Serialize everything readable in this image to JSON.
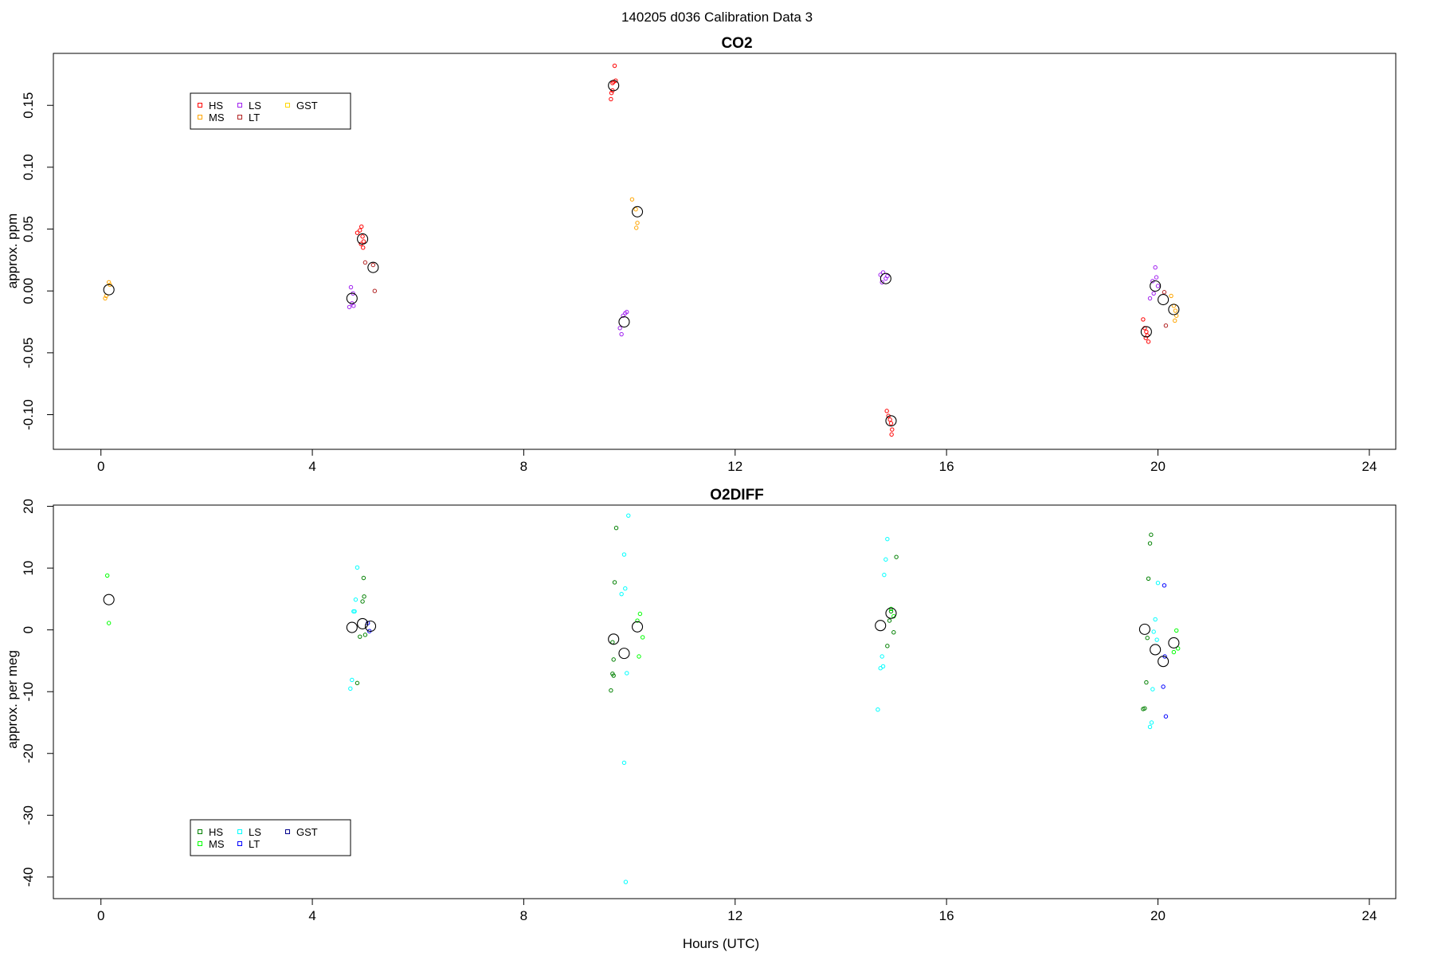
{
  "figure": {
    "title": "140205   d036   Calibration Data 3",
    "xlabel": "Hours (UTC)"
  },
  "chart_data": [
    {
      "type": "scatter",
      "title": "CO2",
      "xlabel": "",
      "ylabel": "approx. ppm",
      "xlim": [
        -0.9,
        24.5
      ],
      "ylim": [
        -0.128,
        0.192
      ],
      "xticks": [
        "0",
        "4",
        "8",
        "12",
        "16",
        "20",
        "24"
      ],
      "yticks": [
        "-0.10",
        "-0.05",
        "0.00",
        "0.05",
        "0.10",
        "0.15"
      ],
      "legend": {
        "position": "top-left",
        "entries": [
          {
            "label": "HS",
            "color": "#ff0000"
          },
          {
            "label": "MS",
            "color": "#ffa500"
          },
          {
            "label": "LS",
            "color": "#a020f0"
          },
          {
            "label": "LT",
            "color": "#b22222"
          },
          {
            "label": "GST",
            "color": "#ffd700"
          }
        ]
      },
      "series": [
        {
          "name": "HS",
          "color": "#ff0000",
          "points": [
            [
              4.85,
              0.047
            ],
            [
              4.9,
              0.049
            ],
            [
              4.93,
              0.052
            ],
            [
              4.95,
              0.044
            ],
            [
              4.92,
              0.038
            ],
            [
              4.96,
              0.035
            ],
            [
              4.97,
              0.04
            ],
            [
              9.72,
              0.182
            ],
            [
              9.68,
              0.168
            ],
            [
              9.7,
              0.169
            ],
            [
              9.66,
              0.16
            ],
            [
              9.65,
              0.155
            ],
            [
              9.68,
              0.162
            ],
            [
              9.74,
              0.17
            ],
            [
              14.87,
              -0.097
            ],
            [
              14.9,
              -0.101
            ],
            [
              14.93,
              -0.104
            ],
            [
              14.95,
              -0.107
            ],
            [
              14.97,
              -0.112
            ],
            [
              14.96,
              -0.116
            ],
            [
              19.72,
              -0.023
            ],
            [
              19.75,
              -0.03
            ],
            [
              19.78,
              -0.033
            ],
            [
              19.8,
              -0.036
            ],
            [
              19.77,
              -0.038
            ],
            [
              19.82,
              -0.041
            ]
          ]
        },
        {
          "name": "MS",
          "color": "#ffa500",
          "points": [
            [
              0.08,
              -0.006
            ],
            [
              0.1,
              -0.004
            ],
            [
              0.15,
              0.007
            ],
            [
              0.17,
              0.005
            ],
            [
              10.05,
              0.074
            ],
            [
              10.12,
              0.066
            ],
            [
              10.15,
              0.055
            ],
            [
              10.13,
              0.051
            ],
            [
              20.25,
              -0.004
            ],
            [
              20.3,
              -0.012
            ],
            [
              20.33,
              -0.016
            ],
            [
              20.35,
              -0.02
            ],
            [
              20.32,
              -0.024
            ]
          ]
        },
        {
          "name": "LS",
          "color": "#a020f0",
          "points": [
            [
              4.7,
              -0.013
            ],
            [
              4.75,
              -0.01
            ],
            [
              4.78,
              -0.012
            ],
            [
              4.73,
              0.003
            ],
            [
              4.77,
              -0.002
            ],
            [
              9.82,
              -0.03
            ],
            [
              9.85,
              -0.035
            ],
            [
              9.88,
              -0.02
            ],
            [
              9.92,
              -0.018
            ],
            [
              9.95,
              -0.017
            ],
            [
              14.75,
              0.013
            ],
            [
              14.8,
              0.015
            ],
            [
              14.85,
              0.01
            ],
            [
              14.78,
              0.007
            ],
            [
              14.88,
              0.012
            ],
            [
              19.85,
              -0.006
            ],
            [
              19.9,
              0.008
            ],
            [
              19.95,
              0.019
            ],
            [
              19.97,
              0.011
            ],
            [
              20.0,
              0.004
            ],
            [
              19.92,
              -0.002
            ]
          ]
        },
        {
          "name": "LT",
          "color": "#b22222",
          "points": [
            [
              5.0,
              0.023
            ],
            [
              5.15,
              0.021
            ],
            [
              5.18,
              0.0
            ],
            [
              20.12,
              -0.001
            ],
            [
              20.15,
              -0.028
            ]
          ]
        },
        {
          "name": "GST",
          "color": "#ffd700",
          "points": []
        },
        {
          "name": "",
          "color": "#000000",
          "mean": true,
          "points": [
            [
              0.15,
              0.001
            ],
            [
              4.75,
              -0.006
            ],
            [
              4.95,
              0.042
            ],
            [
              5.15,
              0.019
            ],
            [
              9.7,
              0.166
            ],
            [
              9.9,
              -0.025
            ],
            [
              10.15,
              0.064
            ],
            [
              14.85,
              0.01
            ],
            [
              14.95,
              -0.105
            ],
            [
              19.78,
              -0.033
            ],
            [
              19.95,
              0.004
            ],
            [
              20.1,
              -0.007
            ],
            [
              20.3,
              -0.015
            ]
          ]
        }
      ]
    },
    {
      "type": "scatter",
      "title": "O2DIFF",
      "xlabel": "Hours (UTC)",
      "ylabel": "approx. per meg",
      "xlim": [
        -0.9,
        24.5
      ],
      "ylim": [
        -43.5,
        20.2
      ],
      "xticks": [
        "0",
        "4",
        "8",
        "12",
        "16",
        "20",
        "24"
      ],
      "yticks": [
        "-40",
        "-30",
        "-20",
        "-10",
        "0",
        "10",
        "20"
      ],
      "legend": {
        "position": "bottom-left",
        "entries": [
          {
            "label": "HS",
            "color": "#008000"
          },
          {
            "label": "MS",
            "color": "#00ff00"
          },
          {
            "label": "LS",
            "color": "#00ffff"
          },
          {
            "label": "LT",
            "color": "#0000ff"
          },
          {
            "label": "GST",
            "color": "#00008b"
          }
        ]
      },
      "series": [
        {
          "name": "HS",
          "color": "#008000",
          "points": [
            [
              4.85,
              -8.6
            ],
            [
              4.9,
              -1.1
            ],
            [
              4.95,
              4.6
            ],
            [
              4.97,
              8.4
            ],
            [
              4.98,
              5.4
            ],
            [
              5.0,
              -0.8
            ],
            [
              9.65,
              -9.8
            ],
            [
              9.68,
              -7.1
            ],
            [
              9.7,
              -4.8
            ],
            [
              9.72,
              7.7
            ],
            [
              9.75,
              16.5
            ],
            [
              9.7,
              -7.4
            ],
            [
              9.68,
              -2.0
            ],
            [
              14.88,
              -2.6
            ],
            [
              14.92,
              1.5
            ],
            [
              14.95,
              3.0
            ],
            [
              15.0,
              -0.4
            ],
            [
              15.05,
              11.8
            ],
            [
              19.75,
              -12.7
            ],
            [
              19.78,
              -8.5
            ],
            [
              19.8,
              -1.3
            ],
            [
              19.82,
              8.3
            ],
            [
              19.85,
              14.0
            ],
            [
              19.87,
              15.4
            ],
            [
              19.72,
              -12.8
            ]
          ]
        },
        {
          "name": "MS",
          "color": "#00ff00",
          "points": [
            [
              0.12,
              8.8
            ],
            [
              0.15,
              1.1
            ],
            [
              10.15,
              1.5
            ],
            [
              10.2,
              2.6
            ],
            [
              10.25,
              -1.2
            ],
            [
              10.18,
              -4.3
            ],
            [
              14.95,
              3.4
            ],
            [
              15.0,
              2.2
            ],
            [
              20.3,
              -3.6
            ],
            [
              20.35,
              -0.1
            ],
            [
              20.38,
              -3.0
            ]
          ]
        },
        {
          "name": "LS",
          "color": "#00ffff",
          "points": [
            [
              4.72,
              -9.5
            ],
            [
              4.75,
              -8.1
            ],
            [
              4.8,
              3.0
            ],
            [
              4.82,
              4.9
            ],
            [
              4.85,
              10.1
            ],
            [
              4.78,
              3.0
            ],
            [
              9.85,
              5.8
            ],
            [
              9.9,
              12.2
            ],
            [
              9.92,
              6.7
            ],
            [
              9.95,
              -7.0
            ],
            [
              9.9,
              -21.5
            ],
            [
              9.98,
              18.5
            ],
            [
              9.93,
              -40.8
            ],
            [
              14.7,
              -12.9
            ],
            [
              14.75,
              -6.2
            ],
            [
              14.78,
              -4.3
            ],
            [
              14.82,
              8.9
            ],
            [
              14.85,
              11.4
            ],
            [
              14.88,
              14.7
            ],
            [
              14.8,
              -5.9
            ],
            [
              19.85,
              -15.7
            ],
            [
              19.9,
              -9.6
            ],
            [
              19.92,
              -0.3
            ],
            [
              19.95,
              1.7
            ],
            [
              20.0,
              7.6
            ],
            [
              19.88,
              -15.0
            ],
            [
              19.98,
              -1.6
            ]
          ]
        },
        {
          "name": "LT",
          "color": "#0000ff",
          "points": [
            [
              5.05,
              1.1
            ],
            [
              5.08,
              -0.2
            ],
            [
              20.1,
              -9.2
            ],
            [
              20.15,
              -14.0
            ],
            [
              20.12,
              7.2
            ],
            [
              20.13,
              -4.3
            ]
          ]
        },
        {
          "name": "GST",
          "color": "#00008b",
          "points": []
        },
        {
          "name": "",
          "color": "#000000",
          "mean": true,
          "points": [
            [
              0.15,
              4.9
            ],
            [
              4.75,
              0.4
            ],
            [
              4.95,
              1.0
            ],
            [
              5.1,
              0.6
            ],
            [
              9.7,
              -1.5
            ],
            [
              9.9,
              -3.8
            ],
            [
              10.15,
              0.5
            ],
            [
              14.75,
              0.7
            ],
            [
              14.95,
              2.7
            ],
            [
              19.75,
              0.1
            ],
            [
              19.95,
              -3.2
            ],
            [
              20.1,
              -5.1
            ],
            [
              20.3,
              -2.1
            ]
          ]
        }
      ]
    }
  ]
}
